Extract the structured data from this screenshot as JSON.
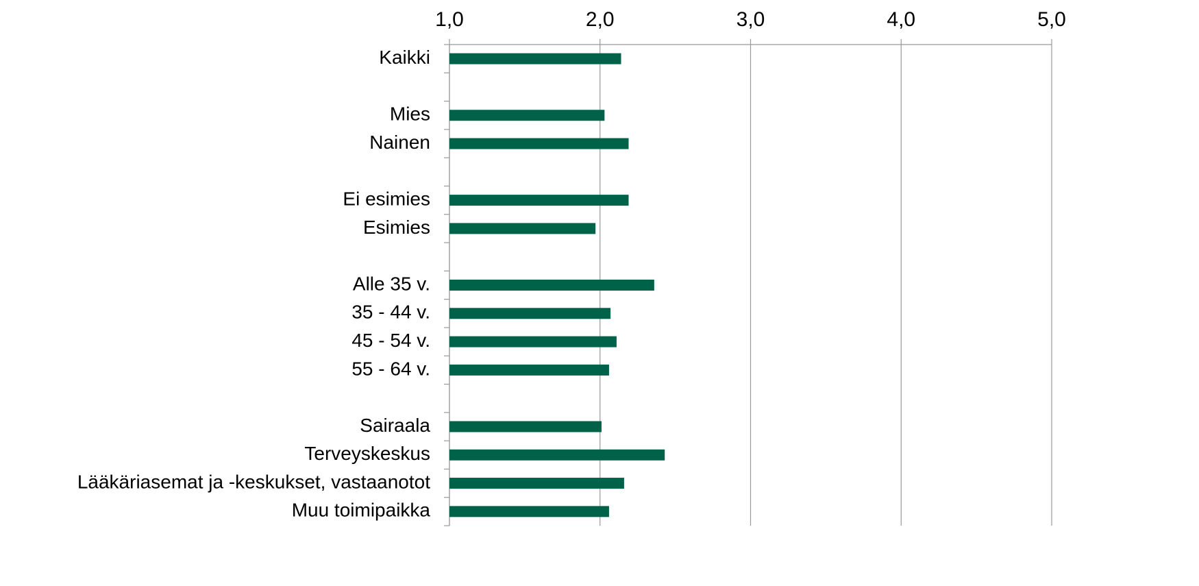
{
  "chart_data": {
    "type": "hbar",
    "color": "#006349",
    "categories": [
      "Kaikki",
      null,
      "Mies",
      "Nainen",
      null,
      "Ei esimies",
      "Esimies",
      null,
      "Alle 35 v.",
      "35 - 44 v.",
      "45 - 54 v.",
      "55 - 64 v.",
      null,
      "Sairaala",
      "Terveyskeskus",
      "Lääkäriasemat ja -keskukset, vastaanotot",
      "Muu toimipaikka"
    ],
    "values": [
      2.14,
      null,
      2.03,
      2.19,
      null,
      2.19,
      1.97,
      null,
      2.36,
      2.07,
      2.11,
      2.06,
      null,
      2.01,
      2.43,
      2.16,
      2.06
    ],
    "xlim": [
      1,
      5
    ],
    "xticks": [
      {
        "value": 1,
        "label": "1,0"
      },
      {
        "value": 2,
        "label": "2,0"
      },
      {
        "value": 3,
        "label": "3,0"
      },
      {
        "value": 4,
        "label": "4,0"
      },
      {
        "value": 5,
        "label": "5,0"
      }
    ],
    "grid": true
  }
}
